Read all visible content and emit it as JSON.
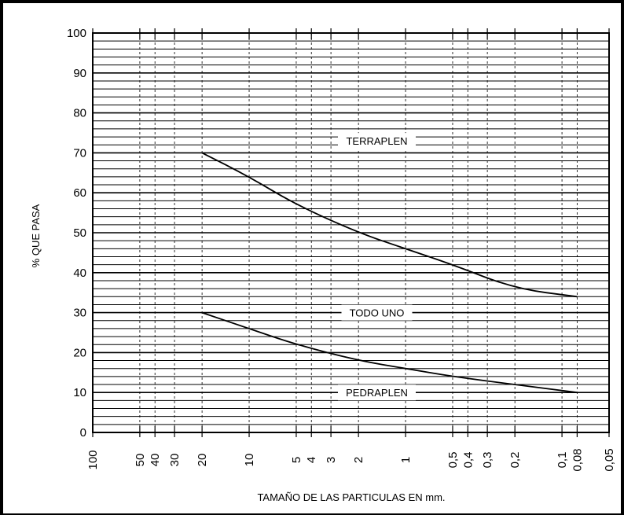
{
  "chart_data": {
    "type": "line",
    "xlabel": "TAMAÑO DE LAS PARTICULAS EN mm.",
    "ylabel": "% QUE PASA",
    "x_scale": "log",
    "x_reversed": true,
    "xlim": [
      100,
      0.05
    ],
    "ylim": [
      0,
      100
    ],
    "y_ticks": [
      "0",
      "10",
      "20",
      "30",
      "40",
      "50",
      "60",
      "70",
      "80",
      "90",
      "100"
    ],
    "x_ticks": [
      {
        "value": 100,
        "label": "100"
      },
      {
        "value": 50,
        "label": "50"
      },
      {
        "value": 40,
        "label": "40"
      },
      {
        "value": 30,
        "label": "30"
      },
      {
        "value": 20,
        "label": "20"
      },
      {
        "value": 10,
        "label": "10"
      },
      {
        "value": 5,
        "label": "5"
      },
      {
        "value": 4,
        "label": "4"
      },
      {
        "value": 3,
        "label": "3"
      },
      {
        "value": 2,
        "label": "2"
      },
      {
        "value": 1,
        "label": "1"
      },
      {
        "value": 0.5,
        "label": "0,5"
      },
      {
        "value": 0.4,
        "label": "0,4"
      },
      {
        "value": 0.3,
        "label": "0,3"
      },
      {
        "value": 0.2,
        "label": "0,2"
      },
      {
        "value": 0.1,
        "label": "0,1"
      },
      {
        "value": 0.08,
        "label": "0,08"
      },
      {
        "value": 0.05,
        "label": "0,05"
      }
    ],
    "grid": true,
    "series": [
      {
        "x": [
          20,
          10,
          5,
          2,
          1,
          0.5,
          0.2,
          0.08
        ],
        "y": [
          70,
          64,
          57,
          50,
          46,
          42,
          36,
          34
        ]
      },
      {
        "x": [
          20,
          10,
          5,
          2,
          1,
          0.5,
          0.2,
          0.08
        ],
        "y": [
          30,
          26,
          22,
          18,
          16,
          14,
          12,
          10
        ]
      }
    ],
    "zone_labels": [
      {
        "text": "TERRAPLEN",
        "y": 73
      },
      {
        "text": "TODO UNO",
        "y": 30
      },
      {
        "text": "PEDRAPLEN",
        "y": 10
      }
    ]
  }
}
